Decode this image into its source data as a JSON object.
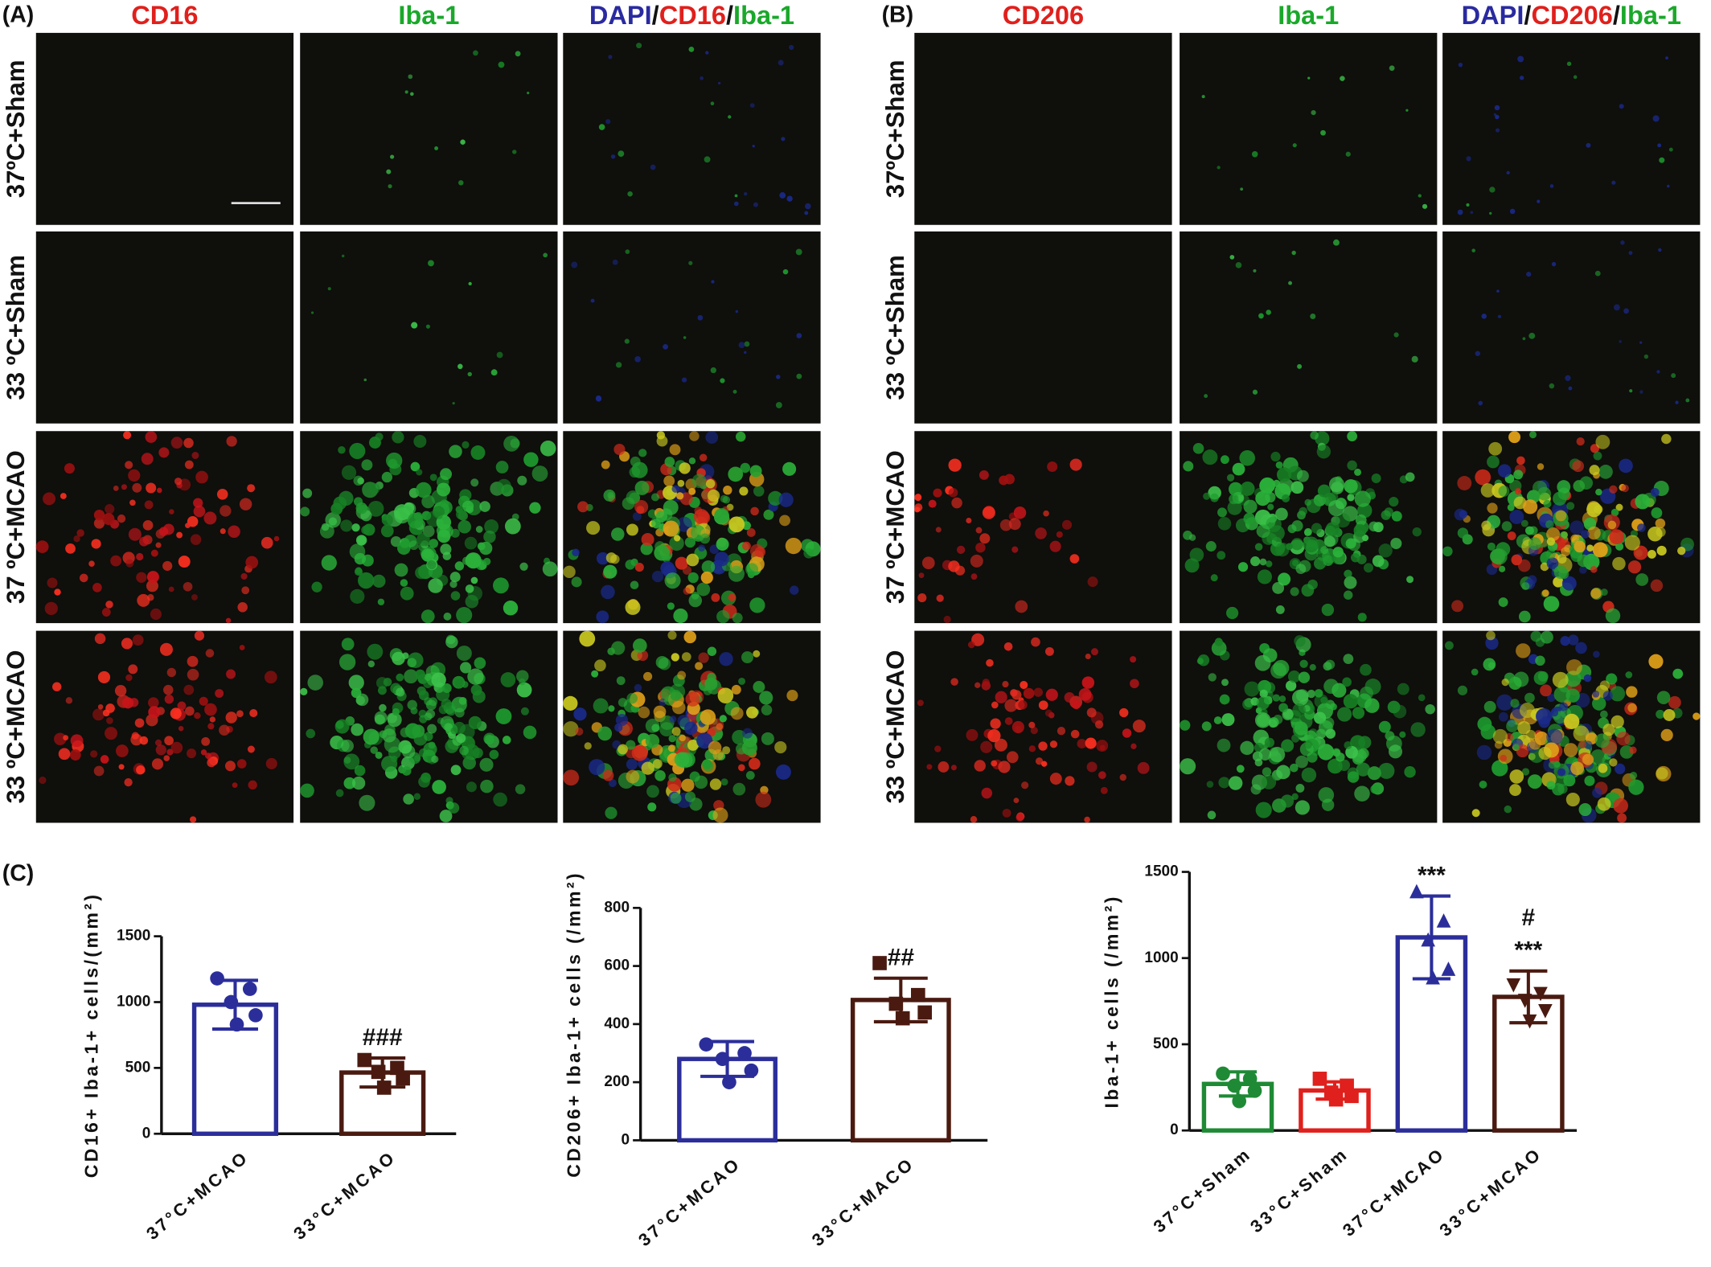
{
  "panels": {
    "A": {
      "label": "(A)",
      "headers": [
        [
          "CD16"
        ],
        [
          "Iba-1"
        ],
        [
          "DAPI",
          "/",
          "CD16",
          "/",
          "Iba-1"
        ]
      ],
      "rows": [
        "37ºC+Sham",
        "33 ºC+Sham",
        "37 ºC+MCAO",
        "33 ºC+MCAO"
      ]
    },
    "B": {
      "label": "(B)",
      "headers": [
        [
          "CD206"
        ],
        [
          "Iba-1"
        ],
        [
          "DAPI",
          "/",
          "CD206",
          "/",
          "Iba-1"
        ]
      ],
      "rows": [
        "37ºC+Sham",
        "33 ºC+Sham",
        "37 ºC+MCAO",
        "33 ºC+MCAO"
      ]
    },
    "C": {
      "label": "(C)"
    }
  },
  "chart_data": [
    {
      "type": "bar",
      "ylabel": "CD16+ Iba-1+ cells/(mm²)",
      "categories": [
        "37°C+MCAO",
        "33°C+MCAO"
      ],
      "values": [
        980,
        465
      ],
      "errors": [
        185,
        110
      ],
      "points": [
        [
          1180,
          1100,
          1000,
          900,
          830
        ],
        [
          560,
          500,
          470,
          420,
          350
        ]
      ],
      "colors": [
        "#2b2e9a",
        "#4a1a10"
      ],
      "markers": [
        "circle",
        "square"
      ],
      "annotations": [
        null,
        [
          "###"
        ]
      ],
      "ylim": [
        0,
        1500
      ],
      "yticks": [
        0,
        500,
        1000,
        1500
      ]
    },
    {
      "type": "bar",
      "ylabel": "CD206+ Iba-1+ cells (/mm²)",
      "categories": [
        "37°C+MCAO",
        "33°C+MACO"
      ],
      "values": [
        280,
        483
      ],
      "errors": [
        60,
        75
      ],
      "points": [
        [
          330,
          300,
          280,
          240,
          200
        ],
        [
          610,
          500,
          470,
          440,
          420
        ]
      ],
      "colors": [
        "#2b2e9a",
        "#4a1a10"
      ],
      "markers": [
        "circle",
        "square"
      ],
      "annotations": [
        null,
        [
          "##"
        ]
      ],
      "ylim": [
        0,
        800
      ],
      "yticks": [
        0,
        200,
        400,
        600,
        800
      ]
    },
    {
      "type": "bar",
      "ylabel": "Iba-1+ cells (/mm²)",
      "categories": [
        "37°C+Sham",
        "33°C+Sham",
        "37°C+MCAO",
        "33°C+MCAO"
      ],
      "values": [
        270,
        232,
        1120,
        775
      ],
      "errors": [
        70,
        50,
        240,
        150
      ],
      "points": [
        [
          330,
          300,
          260,
          230,
          170
        ],
        [
          300,
          260,
          220,
          200,
          180
        ],
        [
          1380,
          1210,
          1100,
          930,
          880
        ],
        [
          850,
          800,
          760,
          700,
          640
        ]
      ],
      "colors": [
        "#1f8a35",
        "#e0201c",
        "#2b2e9a",
        "#4a1a10"
      ],
      "markers": [
        "circle",
        "square",
        "triangle",
        "triangle-down"
      ],
      "annotations": [
        null,
        null,
        [
          "***"
        ],
        [
          "***",
          "#"
        ]
      ],
      "ylim": [
        0,
        1500
      ],
      "yticks": [
        0,
        500,
        1000,
        1500
      ]
    }
  ]
}
